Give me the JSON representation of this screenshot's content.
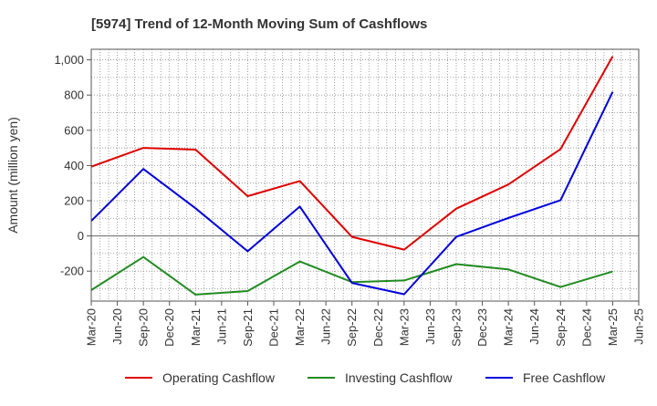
{
  "chart_data": {
    "type": "line",
    "title": "[5974]  Trend of 12-Month Moving Sum of Cashflows",
    "ylabel": "Amount (million yen)",
    "xlabel": "",
    "x": [
      "Mar-20",
      "Jun-20",
      "Sep-20",
      "Dec-20",
      "Mar-21",
      "Jun-21",
      "Sep-21",
      "Dec-21",
      "Mar-22",
      "Jun-22",
      "Sep-22",
      "Dec-22",
      "Mar-23",
      "Jun-23",
      "Sep-23",
      "Dec-23",
      "Mar-24",
      "Jun-24",
      "Sep-24",
      "Dec-24",
      "Mar-25",
      "Jun-25"
    ],
    "ylim": [
      -370,
      1060
    ],
    "yticks": [
      -200,
      0,
      200,
      400,
      600,
      800,
      1000
    ],
    "ytick_labels": [
      "-200",
      "0",
      "200",
      "400",
      "600",
      "800",
      "1,000"
    ],
    "grid": true,
    "legend_position": "bottom",
    "series": [
      {
        "name": "Operating Cashflow",
        "color": "#e00000",
        "points": [
          {
            "x": "Mar-20",
            "y": 393
          },
          {
            "x": "Sep-20",
            "y": 500
          },
          {
            "x": "Mar-21",
            "y": 490
          },
          {
            "x": "Sep-21",
            "y": 226
          },
          {
            "x": "Mar-22",
            "y": 312
          },
          {
            "x": "Sep-22",
            "y": -5
          },
          {
            "x": "Mar-23",
            "y": -78
          },
          {
            "x": "Sep-23",
            "y": 155
          },
          {
            "x": "Mar-24",
            "y": 292
          },
          {
            "x": "Sep-24",
            "y": 493
          },
          {
            "x": "Mar-25",
            "y": 1020
          }
        ]
      },
      {
        "name": "Investing Cashflow",
        "color": "#228b22",
        "points": [
          {
            "x": "Mar-20",
            "y": -308
          },
          {
            "x": "Sep-20",
            "y": -120
          },
          {
            "x": "Mar-21",
            "y": -333
          },
          {
            "x": "Sep-21",
            "y": -313
          },
          {
            "x": "Mar-22",
            "y": -145
          },
          {
            "x": "Sep-22",
            "y": -262
          },
          {
            "x": "Mar-23",
            "y": -253
          },
          {
            "x": "Sep-23",
            "y": -160
          },
          {
            "x": "Mar-24",
            "y": -190
          },
          {
            "x": "Sep-24",
            "y": -290
          },
          {
            "x": "Mar-25",
            "y": -202
          }
        ]
      },
      {
        "name": "Free Cashflow",
        "color": "#0000dd",
        "points": [
          {
            "x": "Mar-20",
            "y": 85
          },
          {
            "x": "Sep-20",
            "y": 380
          },
          {
            "x": "Mar-21",
            "y": 157
          },
          {
            "x": "Sep-21",
            "y": -87
          },
          {
            "x": "Mar-22",
            "y": 167
          },
          {
            "x": "Sep-22",
            "y": -267
          },
          {
            "x": "Mar-23",
            "y": -331
          },
          {
            "x": "Sep-23",
            "y": -5
          },
          {
            "x": "Mar-24",
            "y": 102
          },
          {
            "x": "Sep-24",
            "y": 203
          },
          {
            "x": "Mar-25",
            "y": 818
          }
        ]
      }
    ]
  }
}
